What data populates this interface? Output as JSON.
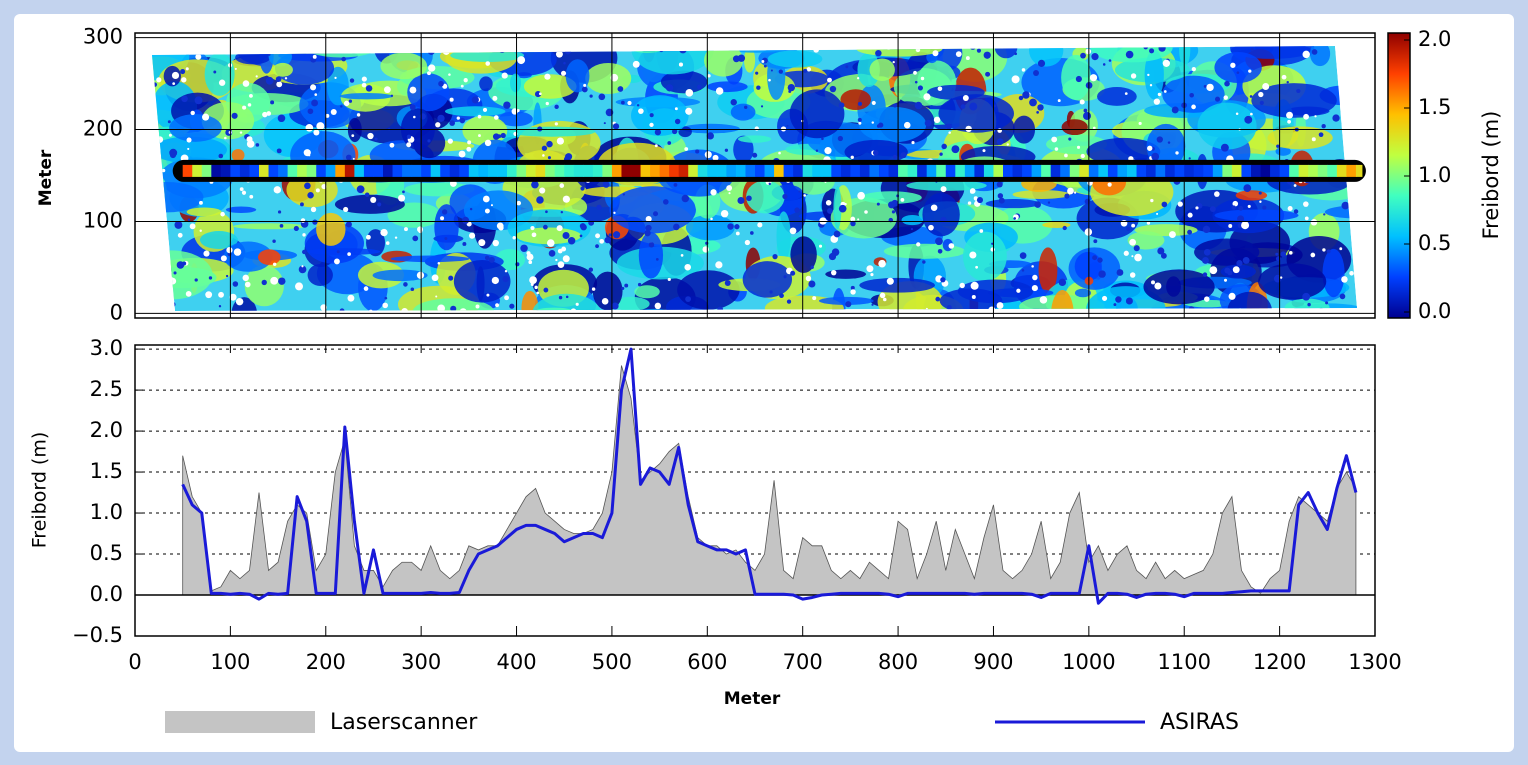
{
  "chart_data": [
    {
      "type": "map",
      "ylabel": "Meter",
      "xlim": [
        0,
        1300
      ],
      "xticks": [
        0,
        100,
        200,
        300,
        400,
        500,
        600,
        700,
        800,
        900,
        1000,
        1100,
        1200,
        1300
      ],
      "ylim": [
        -5,
        305
      ],
      "yticks": [
        0,
        100,
        200,
        300
      ],
      "grid": true,
      "colorbar": {
        "label": "Freibord (m)",
        "lim": [
          0,
          2
        ],
        "ticks": [
          {
            "value": 0,
            "label": "0.0"
          },
          {
            "value": 0.5,
            "label": "0.5"
          },
          {
            "value": 1,
            "label": "1.0"
          },
          {
            "value": 1.5,
            "label": "1.5"
          },
          {
            "value": 2,
            "label": "2.0"
          }
        ],
        "colors": [
          "#00008f",
          "#0040ff",
          "#00c0ff",
          "#40ffc0",
          "#c0ff40",
          "#ffc000",
          "#ff4000",
          "#8f0000"
        ]
      }
    },
    {
      "type": "line",
      "xlabel": "Meter",
      "ylabel": "Freibord (m)",
      "x": [
        50,
        60,
        70,
        80,
        90,
        100,
        110,
        120,
        130,
        140,
        150,
        160,
        170,
        180,
        190,
        200,
        210,
        220,
        230,
        240,
        250,
        260,
        270,
        280,
        290,
        300,
        310,
        320,
        330,
        340,
        350,
        360,
        370,
        380,
        390,
        400,
        410,
        420,
        430,
        440,
        450,
        460,
        470,
        480,
        490,
        500,
        510,
        520,
        530,
        540,
        550,
        560,
        570,
        580,
        590,
        600,
        610,
        620,
        630,
        640,
        650,
        660,
        670,
        680,
        690,
        700,
        710,
        720,
        730,
        740,
        750,
        760,
        770,
        780,
        790,
        800,
        810,
        820,
        830,
        840,
        850,
        860,
        870,
        880,
        890,
        900,
        910,
        920,
        930,
        940,
        950,
        960,
        970,
        980,
        990,
        1000,
        1010,
        1020,
        1030,
        1040,
        1050,
        1060,
        1070,
        1080,
        1090,
        1100,
        1110,
        1120,
        1130,
        1140,
        1150,
        1160,
        1170,
        1180,
        1190,
        1200,
        1210,
        1220,
        1230,
        1240,
        1250,
        1260,
        1270,
        1280
      ],
      "xlim": [
        0,
        1300
      ],
      "xticks": [
        0,
        100,
        200,
        300,
        400,
        500,
        600,
        700,
        800,
        900,
        1000,
        1100,
        1200,
        1300
      ],
      "ylim": [
        -0.5,
        3.05
      ],
      "yticks": [
        {
          "value": -0.5,
          "label": "−0.5"
        },
        {
          "value": 0,
          "label": "0.0"
        },
        {
          "value": 0.5,
          "label": "0.5"
        },
        {
          "value": 1,
          "label": "1.0"
        },
        {
          "value": 1.5,
          "label": "1.5"
        },
        {
          "value": 2,
          "label": "2.0"
        },
        {
          "value": 2.5,
          "label": "2.5"
        },
        {
          "value": 3,
          "label": "3.0"
        }
      ],
      "grid": "dotted",
      "series": [
        {
          "name": "Laserscanner",
          "color": "#c4c4c4",
          "style": "area",
          "values": [
            1.7,
            1.2,
            1.0,
            0.05,
            0.1,
            0.3,
            0.2,
            0.3,
            1.25,
            0.3,
            0.4,
            0.9,
            1.1,
            1.0,
            0.3,
            0.5,
            1.5,
            1.9,
            0.6,
            0.3,
            0.3,
            0.1,
            0.3,
            0.4,
            0.4,
            0.3,
            0.6,
            0.3,
            0.2,
            0.3,
            0.6,
            0.55,
            0.6,
            0.6,
            0.8,
            1.0,
            1.2,
            1.3,
            1.0,
            0.9,
            0.8,
            0.75,
            0.75,
            0.8,
            1.0,
            1.5,
            2.8,
            2.4,
            1.4,
            1.5,
            1.6,
            1.75,
            1.85,
            1.2,
            0.7,
            0.6,
            0.6,
            0.5,
            0.55,
            0.4,
            0.3,
            0.5,
            1.4,
            0.3,
            0.2,
            0.7,
            0.6,
            0.6,
            0.3,
            0.2,
            0.3,
            0.2,
            0.4,
            0.3,
            0.2,
            0.9,
            0.8,
            0.2,
            0.5,
            0.9,
            0.3,
            0.8,
            0.5,
            0.2,
            0.7,
            1.1,
            0.3,
            0.2,
            0.3,
            0.5,
            0.9,
            0.2,
            0.4,
            1.0,
            1.25,
            0.4,
            0.6,
            0.3,
            0.5,
            0.6,
            0.3,
            0.2,
            0.4,
            0.2,
            0.3,
            0.2,
            0.25,
            0.3,
            0.5,
            1.0,
            1.2,
            0.3,
            0.1,
            0.02,
            0.2,
            0.3,
            0.9,
            1.2,
            1.1,
            1.0,
            0.9,
            1.3,
            1.5,
            1.3
          ]
        },
        {
          "name": "ASIRAS",
          "color": "#1a1ad8",
          "style": "line",
          "values": [
            1.35,
            1.1,
            1.0,
            0.02,
            0.02,
            0.01,
            0.02,
            0.01,
            -0.05,
            0.02,
            0.01,
            0.02,
            1.2,
            0.9,
            0.02,
            0.02,
            0.02,
            2.05,
            0.9,
            0.02,
            0.55,
            0.02,
            0.02,
            0.02,
            0.02,
            0.02,
            0.03,
            0.02,
            0.02,
            0.03,
            0.3,
            0.5,
            0.55,
            0.6,
            0.7,
            0.8,
            0.85,
            0.85,
            0.8,
            0.75,
            0.65,
            0.7,
            0.75,
            0.75,
            0.7,
            1.0,
            2.5,
            3.0,
            1.35,
            1.55,
            1.5,
            1.35,
            1.8,
            1.1,
            0.65,
            0.6,
            0.55,
            0.55,
            0.5,
            0.55,
            0.01,
            0.01,
            0.01,
            0.01,
            0.0,
            -0.05,
            -0.03,
            0.0,
            0.01,
            0.02,
            0.02,
            0.02,
            0.02,
            0.02,
            0.01,
            -0.02,
            0.02,
            0.02,
            0.02,
            0.02,
            0.02,
            0.02,
            0.02,
            0.01,
            0.02,
            0.02,
            0.02,
            0.02,
            0.02,
            0.01,
            -0.03,
            0.02,
            0.02,
            0.02,
            0.02,
            0.6,
            -0.1,
            0.02,
            0.02,
            0.01,
            -0.03,
            0.01,
            0.02,
            0.02,
            0.01,
            -0.02,
            0.02,
            0.02,
            0.02,
            0.02,
            0.03,
            0.04,
            0.05,
            0.05,
            0.05,
            0.05,
            0.05,
            1.1,
            1.25,
            1.0,
            0.8,
            1.3,
            1.7,
            1.25
          ]
        }
      ]
    }
  ]
}
